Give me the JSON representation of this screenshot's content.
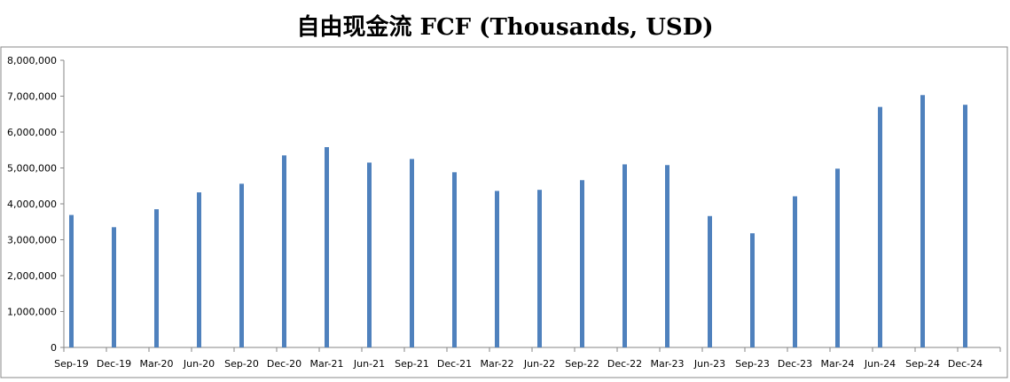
{
  "chart_data": {
    "type": "bar",
    "title": "自由现金流 FCF (Thousands, USD)",
    "xlabel": "",
    "ylabel": "",
    "ylim": [
      0,
      8000000
    ],
    "yticks": [
      0,
      1000000,
      2000000,
      3000000,
      4000000,
      5000000,
      6000000,
      7000000,
      8000000
    ],
    "ytick_labels": [
      "0",
      "1,000,000",
      "2,000,000",
      "3,000,000",
      "4,000,000",
      "5,000,000",
      "6,000,000",
      "7,000,000",
      "8,000,000"
    ],
    "categories": [
      "Sep-19",
      "Dec-19",
      "Mar-20",
      "Jun-20",
      "Sep-20",
      "Dec-20",
      "Mar-21",
      "Jun-21",
      "Sep-21",
      "Dec-21",
      "Mar-22",
      "Jun-22",
      "Sep-22",
      "Dec-22",
      "Mar-23",
      "Jun-23",
      "Sep-23",
      "Dec-23",
      "Mar-24",
      "Jun-24",
      "Sep-24",
      "Dec-24"
    ],
    "values": [
      3690000,
      3350000,
      3850000,
      4320000,
      4560000,
      5350000,
      5580000,
      5150000,
      5250000,
      4880000,
      4360000,
      4390000,
      4660000,
      5100000,
      5080000,
      3660000,
      3180000,
      4210000,
      4980000,
      6700000,
      7030000,
      6760000
    ],
    "bar_color": "#4F81BD",
    "grid": false,
    "legend": "none"
  }
}
